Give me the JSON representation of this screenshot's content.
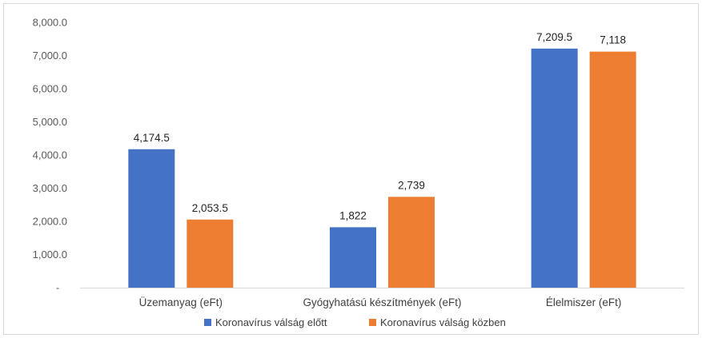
{
  "chart_data": {
    "type": "bar",
    "categories": [
      "Üzemanyag (eFt)",
      "Gyógyhatású készítmények (eFt)",
      "Élelmiszer (eFt)"
    ],
    "series": [
      {
        "name": "Koronavírus válság előtt",
        "color": "#4472C4",
        "values": [
          4174.5,
          1822,
          7209.5
        ],
        "labels": [
          "4,174.5",
          "1,822",
          "7,209.5"
        ]
      },
      {
        "name": "Koronavírus válság közben",
        "color": "#ED7D31",
        "values": [
          2053.5,
          2739,
          7118
        ],
        "labels": [
          "2,053.5",
          "2,739",
          "7,118"
        ]
      }
    ],
    "yticks": [
      {
        "value": 0,
        "label": "-"
      },
      {
        "value": 1000,
        "label": "1,000.0"
      },
      {
        "value": 2000,
        "label": "2,000.0"
      },
      {
        "value": 3000,
        "label": "3,000.0"
      },
      {
        "value": 4000,
        "label": "4,000.0"
      },
      {
        "value": 5000,
        "label": "5,000.0"
      },
      {
        "value": 6000,
        "label": "6,000.0"
      },
      {
        "value": 7000,
        "label": "7,000.0"
      },
      {
        "value": 8000,
        "label": "8,000.0"
      }
    ],
    "ylim": [
      0,
      8000
    ],
    "grid": false,
    "legend": "bottom-center"
  }
}
